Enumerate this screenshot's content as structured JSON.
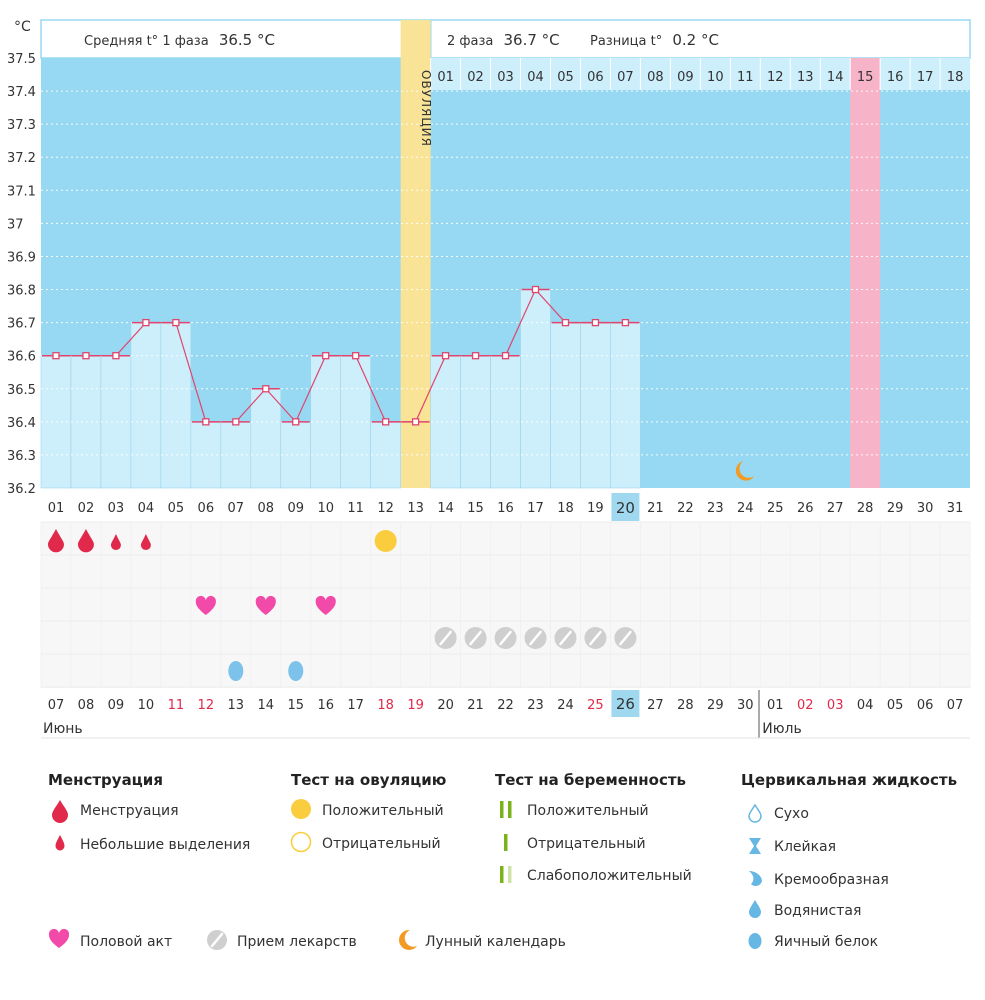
{
  "chart_data": {
    "type": "line",
    "title": "",
    "ylabel": "°C",
    "unit_label": "°C",
    "ylim": [
      36.2,
      37.5
    ],
    "y_ticks": [
      "36.2",
      "36.3",
      "36.4",
      "36.5",
      "36.6",
      "36.7",
      "36.8",
      "36.9",
      "37",
      "37.1",
      "37.2",
      "37.3",
      "37.4",
      "37.5"
    ],
    "cycle_days": [
      "01",
      "02",
      "03",
      "04",
      "05",
      "06",
      "07",
      "08",
      "09",
      "10",
      "11",
      "12",
      "13",
      "14",
      "15",
      "16",
      "17",
      "18",
      "19",
      "20",
      "21",
      "22",
      "23",
      "24",
      "25",
      "26",
      "27",
      "28",
      "29",
      "30",
      "31"
    ],
    "temperatures": [
      36.6,
      36.6,
      36.6,
      36.7,
      36.7,
      36.4,
      36.4,
      36.5,
      36.4,
      36.6,
      36.6,
      36.4,
      36.4,
      36.6,
      36.6,
      36.6,
      36.8,
      36.7,
      36.7,
      36.7
    ],
    "current_day_index": 19,
    "ovulation_day_index": 12,
    "ovulation_label": "ОВУЛЯЦИЯ",
    "phase2_days": [
      "01",
      "02",
      "03",
      "04",
      "05",
      "06",
      "07",
      "08",
      "09",
      "10",
      "11",
      "12",
      "13",
      "14",
      "15",
      "16",
      "17",
      "18"
    ],
    "phase2_highlight_index": 14,
    "phase1_text": "Средняя t° 1 фаза",
    "phase1_value": "36.5 °C",
    "phase2_text": "2 фаза",
    "phase2_value": "36.7 °C",
    "diff_text": "Разница t°",
    "diff_value": "0.2 °C",
    "calendar_dates": [
      "07",
      "08",
      "09",
      "10",
      "11",
      "12",
      "13",
      "14",
      "15",
      "16",
      "17",
      "18",
      "19",
      "20",
      "21",
      "22",
      "23",
      "24",
      "25",
      "26",
      "27",
      "28",
      "29",
      "30",
      "01",
      "02",
      "03",
      "04",
      "05",
      "06",
      "07"
    ],
    "red_date_indices": [
      4,
      5,
      11,
      12,
      18,
      25,
      26
    ],
    "month_labels": [
      {
        "text": "Июнь",
        "index": 0
      },
      {
        "text": "Июль",
        "index": 24
      }
    ],
    "menstruation": [
      {
        "index": 0,
        "kind": "large"
      },
      {
        "index": 1,
        "kind": "large"
      },
      {
        "index": 2,
        "kind": "small"
      },
      {
        "index": 3,
        "kind": "small"
      }
    ],
    "ovulation_test": [
      {
        "index": 11,
        "kind": "positive"
      }
    ],
    "intercourse": [
      5,
      7,
      9
    ],
    "medication": [
      13,
      14,
      15,
      16,
      17,
      18,
      19
    ],
    "cervical_fluid": [
      {
        "index": 6,
        "kind": "egg_white"
      },
      {
        "index": 8,
        "kind": "egg_white"
      }
    ],
    "moon": [
      {
        "index": 23,
        "icon": "moon-icon"
      }
    ],
    "colors": {
      "bg": "#97d9f2",
      "bar": "#cdeefb",
      "line": "#e0456d",
      "ovulation": "#f8e397",
      "pink": "#f7b4c8",
      "current": "#9fd8ef",
      "red": "#e0294b"
    }
  },
  "legend": {
    "menstruation": {
      "title": "Менструация",
      "items": [
        "Менструация",
        "Небольшие выделения"
      ]
    },
    "ovulation_test": {
      "title": "Тест на овуляцию",
      "items": [
        "Положительный",
        "Отрицательный"
      ]
    },
    "pregnancy_test": {
      "title": "Тест на беременность",
      "items": [
        "Положительный",
        "Отрицательный",
        "Слабоположительный"
      ]
    },
    "cervical_fluid": {
      "title": "Цервикальная жидкость",
      "items": [
        "Сухо",
        "Клейкая",
        "Кремообразная",
        "Водянистая",
        "Яичный белок"
      ]
    },
    "bottom": [
      "Половой акт",
      "Прием лекарств",
      "Лунный календарь"
    ]
  }
}
